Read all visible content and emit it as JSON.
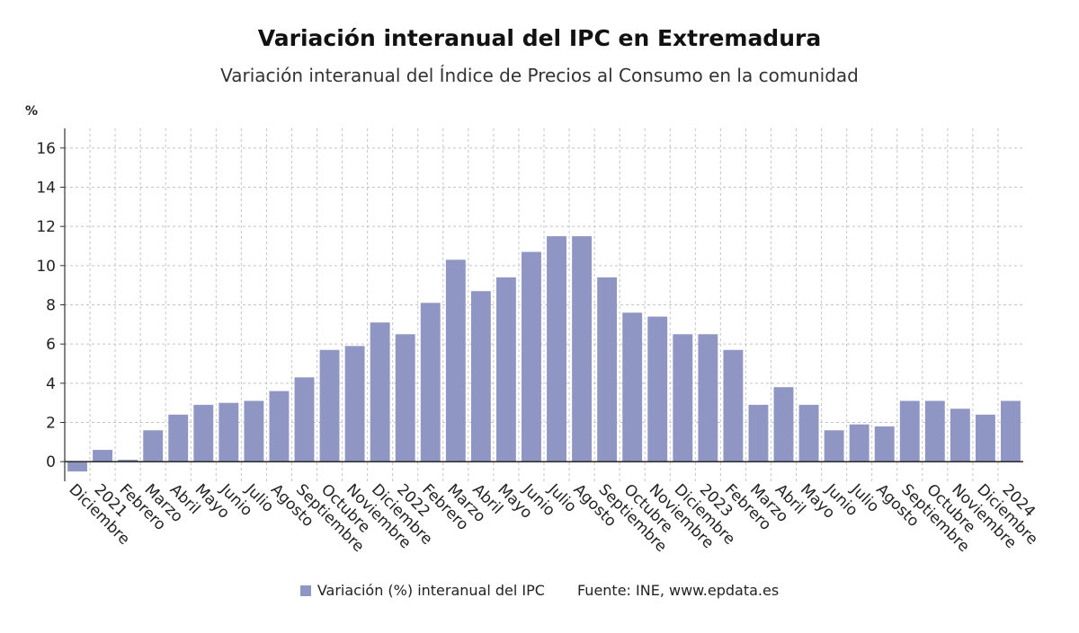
{
  "title": "Variación interanual del IPC en Extremadura",
  "subtitle": "Variación interanual del Índice de Precios al Consumo en la comunidad",
  "unit": "%",
  "source_label": "Fuente: INE, www.epdata.es",
  "colors": {
    "bar": "#8f96c4",
    "grid": "#c4c4c4",
    "axis": "#333333",
    "text": "#222222"
  },
  "chart_data": {
    "type": "bar",
    "title": "Variación interanual del IPC en Extremadura",
    "subtitle": "Variación interanual del Índice de Precios al Consumo en la comunidad",
    "ylabel": "%",
    "xlabel": "",
    "ylim": [
      -1,
      17
    ],
    "yticks": [
      0,
      2,
      4,
      6,
      8,
      10,
      12,
      14,
      16
    ],
    "grid": true,
    "legend_position": "bottom",
    "categories": [
      "Diciembre",
      "2021",
      "Febrero",
      "Marzo",
      "Abril",
      "Mayo",
      "Junio",
      "Julio",
      "Agosto",
      "Septiembre",
      "Octubre",
      "Noviembre",
      "Diciembre",
      "2022",
      "Febrero",
      "Marzo",
      "Abril",
      "Mayo",
      "Junio",
      "Julio",
      "Agosto",
      "Septiembre",
      "Octubre",
      "Noviembre",
      "Diciembre",
      "2023",
      "Febrero",
      "Marzo",
      "Abril",
      "Mayo",
      "Junio",
      "Julio",
      "Agosto",
      "Septiembre",
      "Octubre",
      "Noviembre",
      "Diciembre",
      "2024"
    ],
    "series": [
      {
        "name": "Variación (%) interanual del IPC",
        "values": [
          -0.5,
          0.6,
          0.1,
          1.6,
          2.4,
          2.9,
          3.0,
          3.1,
          3.6,
          4.3,
          5.7,
          5.9,
          7.1,
          6.5,
          8.1,
          10.3,
          8.7,
          9.4,
          10.7,
          11.5,
          11.5,
          9.4,
          7.6,
          7.4,
          6.5,
          6.5,
          5.7,
          2.9,
          3.8,
          2.9,
          1.6,
          1.9,
          1.8,
          3.1,
          3.1,
          2.7,
          2.4,
          3.1
        ]
      }
    ]
  }
}
